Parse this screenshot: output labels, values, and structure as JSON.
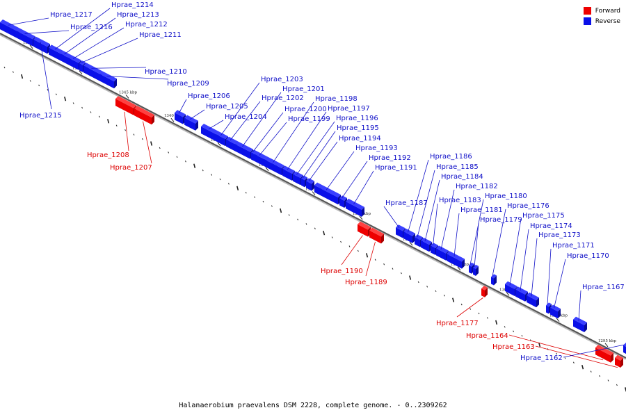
{
  "legend": [
    {
      "label": "Forward",
      "color": "#ee0000"
    },
    {
      "label": "Reverse",
      "color": "#0a10e8"
    }
  ],
  "caption": "Halanaerobium praevalens DSM 2228, complete genome. - 0..2309262",
  "ticks": [
    "1355 kbp",
    "1350 kbp",
    "1345 kbp",
    "1340 kbp",
    "1335 kbp",
    "1330 kbp",
    "1325 kbp",
    "1320 kbp",
    "1315 kbp",
    "1310 kbp",
    "1305 kbp",
    "1300 kbp",
    "1295 kbp"
  ],
  "genes": [
    {
      "label": "Hprae_1217",
      "strand": "reverse"
    },
    {
      "label": "Hprae_1216",
      "strand": "reverse"
    },
    {
      "label": "Hprae_1215",
      "strand": "reverse"
    },
    {
      "label": "Hprae_1214",
      "strand": "reverse"
    },
    {
      "label": "Hprae_1213",
      "strand": "reverse"
    },
    {
      "label": "Hprae_1212",
      "strand": "reverse"
    },
    {
      "label": "Hprae_1211",
      "strand": "reverse"
    },
    {
      "label": "Hprae_1210",
      "strand": "reverse"
    },
    {
      "label": "Hprae_1209",
      "strand": "reverse"
    },
    {
      "label": "Hprae_1208",
      "strand": "forward"
    },
    {
      "label": "Hprae_1207",
      "strand": "forward"
    },
    {
      "label": "Hprae_1206",
      "strand": "reverse"
    },
    {
      "label": "Hprae_1205",
      "strand": "reverse"
    },
    {
      "label": "Hprae_1204",
      "strand": "reverse"
    },
    {
      "label": "Hprae_1203",
      "strand": "reverse"
    },
    {
      "label": "Hprae_1202",
      "strand": "reverse"
    },
    {
      "label": "Hprae_1201",
      "strand": "reverse"
    },
    {
      "label": "Hprae_1200",
      "strand": "reverse"
    },
    {
      "label": "Hprae_1199",
      "strand": "reverse"
    },
    {
      "label": "Hprae_1198",
      "strand": "reverse"
    },
    {
      "label": "Hprae_1197",
      "strand": "reverse"
    },
    {
      "label": "Hprae_1196",
      "strand": "reverse"
    },
    {
      "label": "Hprae_1195",
      "strand": "reverse"
    },
    {
      "label": "Hprae_1194",
      "strand": "reverse"
    },
    {
      "label": "Hprae_1193",
      "strand": "reverse"
    },
    {
      "label": "Hprae_1192",
      "strand": "reverse"
    },
    {
      "label": "Hprae_1191",
      "strand": "reverse"
    },
    {
      "label": "Hprae_1190",
      "strand": "forward"
    },
    {
      "label": "Hprae_1189",
      "strand": "forward"
    },
    {
      "label": "Hprae_1187",
      "strand": "reverse"
    },
    {
      "label": "Hprae_1186",
      "strand": "reverse"
    },
    {
      "label": "Hprae_1185",
      "strand": "reverse"
    },
    {
      "label": "Hprae_1184",
      "strand": "reverse"
    },
    {
      "label": "Hprae_1183",
      "strand": "reverse"
    },
    {
      "label": "Hprae_1182",
      "strand": "reverse"
    },
    {
      "label": "Hprae_1181",
      "strand": "reverse"
    },
    {
      "label": "Hprae_1180",
      "strand": "reverse"
    },
    {
      "label": "Hprae_1179",
      "strand": "reverse"
    },
    {
      "label": "Hprae_1177",
      "strand": "forward"
    },
    {
      "label": "Hprae_1176",
      "strand": "reverse"
    },
    {
      "label": "Hprae_1175",
      "strand": "reverse"
    },
    {
      "label": "Hprae_1174",
      "strand": "reverse"
    },
    {
      "label": "Hprae_1173",
      "strand": "reverse"
    },
    {
      "label": "Hprae_1171",
      "strand": "reverse"
    },
    {
      "label": "Hprae_1170",
      "strand": "reverse"
    },
    {
      "label": "Hprae_1167",
      "strand": "reverse"
    },
    {
      "label": "Hprae_1164",
      "strand": "forward"
    },
    {
      "label": "Hprae_1163",
      "strand": "forward"
    },
    {
      "label": "Hprae_1162",
      "strand": "reverse"
    }
  ]
}
